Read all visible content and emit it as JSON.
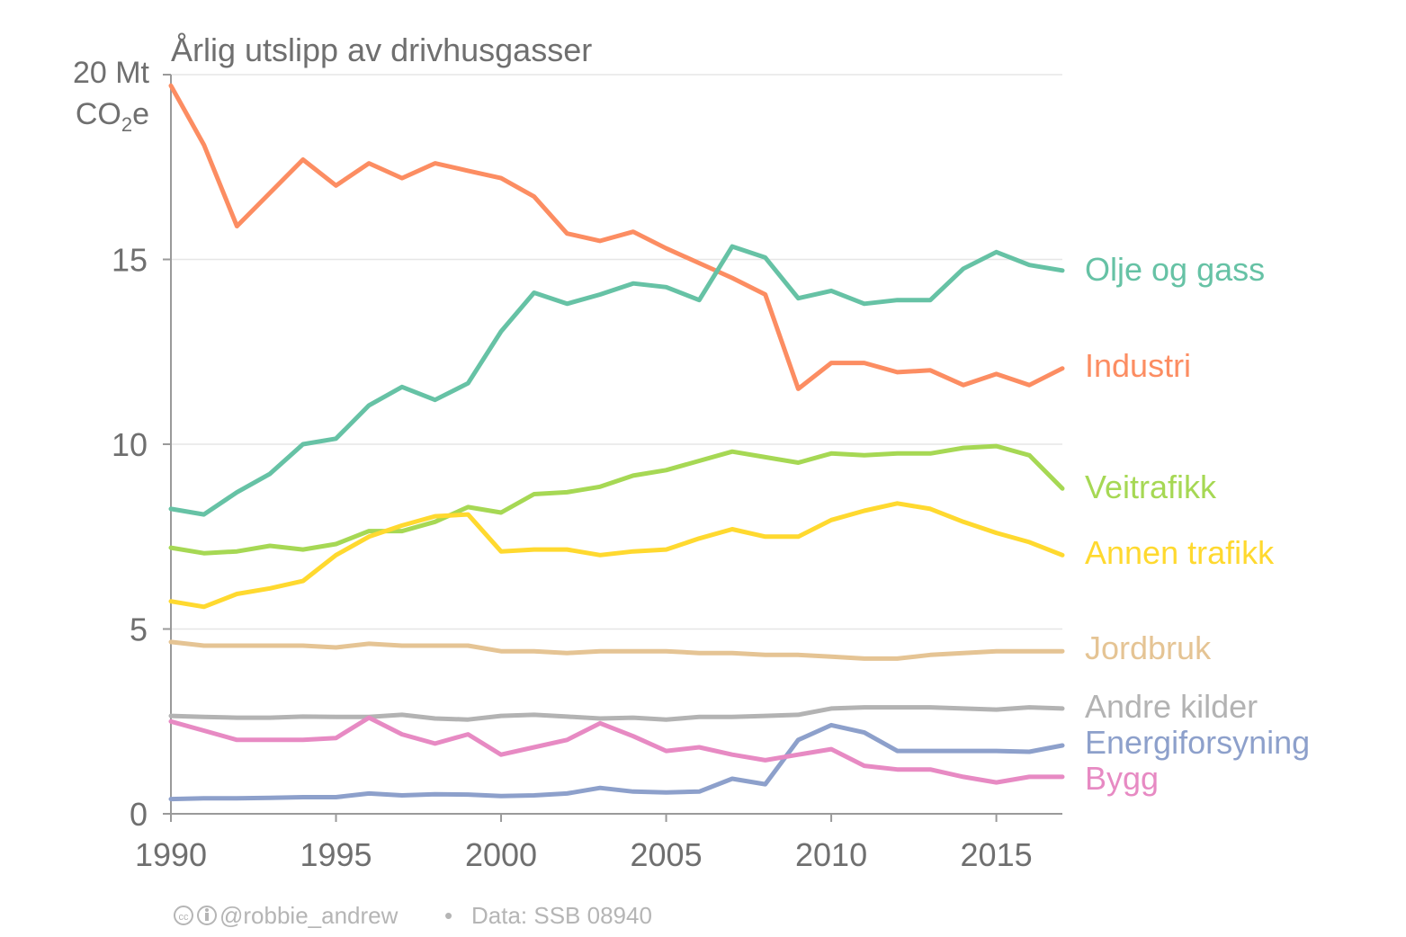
{
  "chart_data": {
    "type": "line",
    "title": "Årlig utslipp av drivhusgasser",
    "ylabel": [
      "20 Mt",
      "CO",
      "2",
      "e"
    ],
    "xlim": [
      1990,
      2017
    ],
    "ylim": [
      0,
      20
    ],
    "xticks": [
      1990,
      1995,
      2000,
      2005,
      2010,
      2015
    ],
    "xtick_labels": [
      "1990",
      "1995",
      "2000",
      "2005",
      "2010",
      "2015"
    ],
    "yticks": [
      0,
      5,
      10,
      15
    ],
    "ytick_labels": [
      "0",
      "5",
      "10",
      "15"
    ],
    "grid": true,
    "legend": "direct-labels-right",
    "x": [
      1990,
      1991,
      1992,
      1993,
      1994,
      1995,
      1996,
      1997,
      1998,
      1999,
      2000,
      2001,
      2002,
      2003,
      2004,
      2005,
      2006,
      2007,
      2008,
      2009,
      2010,
      2011,
      2012,
      2013,
      2014,
      2015,
      2016,
      2017
    ],
    "series": [
      {
        "name": "Industri",
        "color": "#fc8d62",
        "values": [
          19.7,
          18.1,
          15.9,
          16.8,
          17.7,
          17.0,
          17.6,
          17.2,
          17.6,
          17.4,
          17.2,
          16.7,
          15.7,
          15.5,
          15.75,
          15.3,
          14.9,
          14.5,
          14.05,
          11.5,
          12.2,
          12.2,
          11.95,
          12.0,
          11.6,
          11.9,
          11.6,
          12.05
        ]
      },
      {
        "name": "Olje og gass",
        "color": "#66c2a5",
        "values": [
          8.25,
          8.1,
          8.7,
          9.2,
          10.0,
          10.15,
          11.05,
          11.55,
          11.2,
          11.65,
          13.05,
          14.1,
          13.8,
          14.05,
          14.35,
          14.25,
          13.9,
          15.35,
          15.05,
          13.95,
          14.15,
          13.8,
          13.9,
          13.9,
          14.75,
          15.2,
          14.85,
          14.7
        ]
      },
      {
        "name": "Veitrafikk",
        "color": "#a6d854",
        "values": [
          7.2,
          7.05,
          7.1,
          7.25,
          7.15,
          7.3,
          7.65,
          7.65,
          7.9,
          8.3,
          8.15,
          8.65,
          8.7,
          8.85,
          9.15,
          9.3,
          9.55,
          9.8,
          9.65,
          9.5,
          9.75,
          9.7,
          9.75,
          9.75,
          9.9,
          9.95,
          9.7,
          8.8
        ]
      },
      {
        "name": "Annen trafikk",
        "color": "#ffd92f",
        "values": [
          5.75,
          5.6,
          5.95,
          6.1,
          6.3,
          7.0,
          7.5,
          7.8,
          8.05,
          8.1,
          7.1,
          7.15,
          7.15,
          7.0,
          7.1,
          7.15,
          7.45,
          7.7,
          7.5,
          7.5,
          7.95,
          8.2,
          8.4,
          8.25,
          7.9,
          7.6,
          7.35,
          7.0
        ]
      },
      {
        "name": "Jordbruk",
        "color": "#e5c494",
        "values": [
          4.65,
          4.55,
          4.55,
          4.55,
          4.55,
          4.5,
          4.6,
          4.55,
          4.55,
          4.55,
          4.4,
          4.4,
          4.35,
          4.4,
          4.4,
          4.4,
          4.35,
          4.35,
          4.3,
          4.3,
          4.25,
          4.2,
          4.2,
          4.3,
          4.35,
          4.4,
          4.4,
          4.4
        ]
      },
      {
        "name": "Andre kilder",
        "color": "#b3b3b3",
        "values": [
          2.65,
          2.62,
          2.6,
          2.6,
          2.63,
          2.62,
          2.62,
          2.68,
          2.58,
          2.55,
          2.65,
          2.68,
          2.63,
          2.58,
          2.6,
          2.55,
          2.62,
          2.62,
          2.65,
          2.68,
          2.85,
          2.88,
          2.88,
          2.88,
          2.85,
          2.82,
          2.88,
          2.85
        ]
      },
      {
        "name": "Energiforsyning",
        "color": "#8da0cb",
        "values": [
          0.4,
          0.42,
          0.42,
          0.43,
          0.45,
          0.45,
          0.55,
          0.5,
          0.53,
          0.52,
          0.48,
          0.5,
          0.55,
          0.7,
          0.6,
          0.58,
          0.6,
          0.95,
          0.8,
          2.0,
          2.4,
          2.2,
          1.7,
          1.7,
          1.7,
          1.7,
          1.68,
          1.85
        ]
      },
      {
        "name": "Bygg",
        "color": "#e78ac3",
        "values": [
          2.5,
          2.25,
          2.0,
          2.0,
          2.0,
          2.05,
          2.6,
          2.15,
          1.9,
          2.15,
          1.6,
          1.8,
          2.0,
          2.45,
          2.1,
          1.7,
          1.8,
          1.6,
          1.45,
          1.6,
          1.75,
          1.3,
          1.2,
          1.2,
          1.0,
          0.85,
          1.0,
          1.0
        ]
      }
    ],
    "footer": {
      "handle": "@robbie_andrew",
      "separator": "•",
      "source": "Data: SSB 08940"
    }
  }
}
